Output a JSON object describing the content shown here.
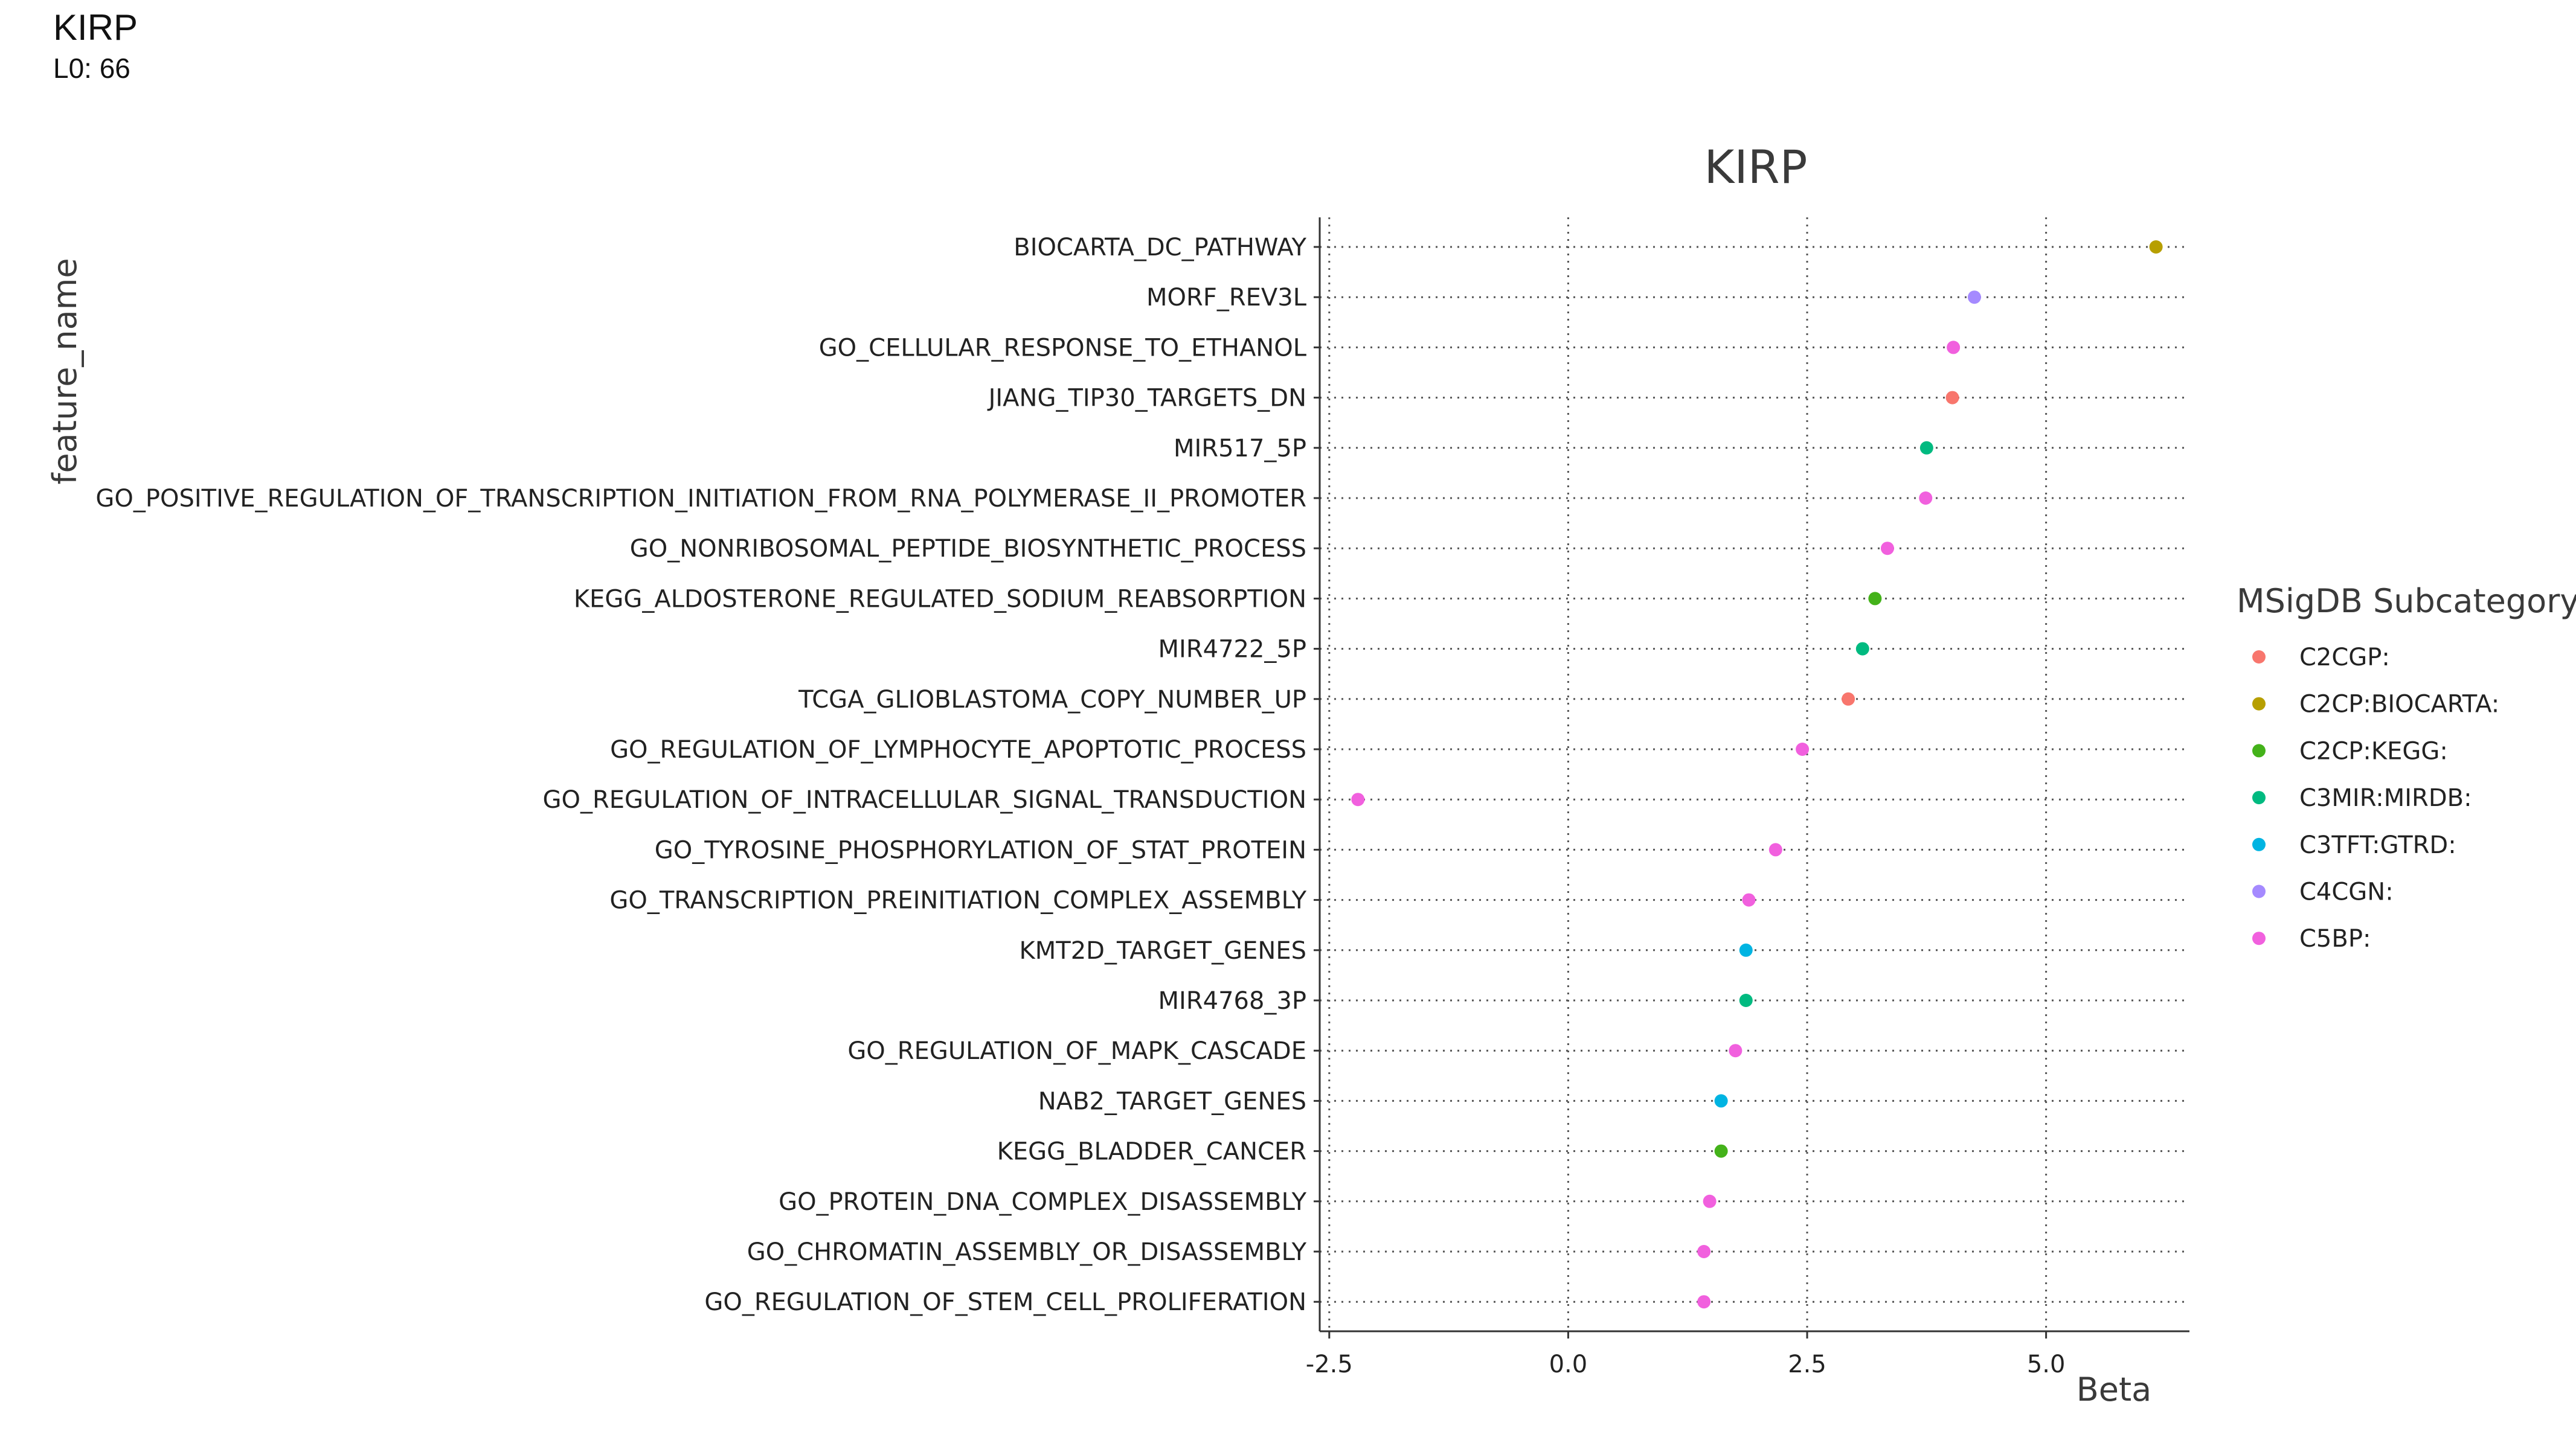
{
  "page": {
    "title": "KIRP",
    "subtitle": "L0: 66"
  },
  "chart_data": {
    "type": "scatter",
    "title": "KIRP",
    "xlabel": "Beta",
    "ylabel": "feature_name",
    "xlim": [
      -2.6,
      6.5
    ],
    "xticks": [
      -2.5,
      0.0,
      2.5,
      5.0
    ],
    "xtick_labels": [
      "-2.5",
      "0.0",
      "2.5",
      "5.0"
    ],
    "grid": "dotted",
    "legend": {
      "title": "MSigDB Subcategory",
      "position": "right",
      "entries": [
        {
          "label": "C2CGP:",
          "color": "#F8766D"
        },
        {
          "label": "C2CP:BIOCARTA:",
          "color": "#B79F00"
        },
        {
          "label": "C2CP:KEGG:",
          "color": "#44B21A"
        },
        {
          "label": "C3MIR:MIRDB:",
          "color": "#00BA80"
        },
        {
          "label": "C3TFT:GTRD:",
          "color": "#00B4E2"
        },
        {
          "label": "C4CGN:",
          "color": "#A58AFF"
        },
        {
          "label": "C5BP:",
          "color": "#F160DE"
        }
      ]
    },
    "points": [
      {
        "name": "BIOCARTA_DC_PATHWAY",
        "beta": 6.15,
        "category": "C2CP:BIOCARTA:"
      },
      {
        "name": "MORF_REV3L",
        "beta": 4.25,
        "category": "C4CGN:"
      },
      {
        "name": "GO_CELLULAR_RESPONSE_TO_ETHANOL",
        "beta": 4.03,
        "category": "C5BP:"
      },
      {
        "name": "JIANG_TIP30_TARGETS_DN",
        "beta": 4.02,
        "category": "C2CGP:"
      },
      {
        "name": "MIR517_5P",
        "beta": 3.75,
        "category": "C3MIR:MIRDB:"
      },
      {
        "name": "GO_POSITIVE_REGULATION_OF_TRANSCRIPTION_INITIATION_FROM_RNA_POLYMERASE_II_PROMOTER",
        "beta": 3.74,
        "category": "C5BP:"
      },
      {
        "name": "GO_NONRIBOSOMAL_PEPTIDE_BIOSYNTHETIC_PROCESS",
        "beta": 3.34,
        "category": "C5BP:"
      },
      {
        "name": "KEGG_ALDOSTERONE_REGULATED_SODIUM_REABSORPTION",
        "beta": 3.21,
        "category": "C2CP:KEGG:"
      },
      {
        "name": "MIR4722_5P",
        "beta": 3.08,
        "category": "C3MIR:MIRDB:"
      },
      {
        "name": "TCGA_GLIOBLASTOMA_COPY_NUMBER_UP",
        "beta": 2.93,
        "category": "C2CGP:"
      },
      {
        "name": "GO_REGULATION_OF_LYMPHOCYTE_APOPTOTIC_PROCESS",
        "beta": 2.45,
        "category": "C5BP:"
      },
      {
        "name": "GO_REGULATION_OF_INTRACELLULAR_SIGNAL_TRANSDUCTION",
        "beta": -2.2,
        "category": "C5BP:"
      },
      {
        "name": "GO_TYROSINE_PHOSPHORYLATION_OF_STAT_PROTEIN",
        "beta": 2.17,
        "category": "C5BP:"
      },
      {
        "name": "GO_TRANSCRIPTION_PREINITIATION_COMPLEX_ASSEMBLY",
        "beta": 1.89,
        "category": "C5BP:"
      },
      {
        "name": "KMT2D_TARGET_GENES",
        "beta": 1.86,
        "category": "C3TFT:GTRD:"
      },
      {
        "name": "MIR4768_3P",
        "beta": 1.86,
        "category": "C3MIR:MIRDB:"
      },
      {
        "name": "GO_REGULATION_OF_MAPK_CASCADE",
        "beta": 1.75,
        "category": "C5BP:"
      },
      {
        "name": "NAB2_TARGET_GENES",
        "beta": 1.6,
        "category": "C3TFT:GTRD:"
      },
      {
        "name": "KEGG_BLADDER_CANCER",
        "beta": 1.6,
        "category": "C2CP:KEGG:"
      },
      {
        "name": "GO_PROTEIN_DNA_COMPLEX_DISASSEMBLY",
        "beta": 1.48,
        "category": "C5BP:"
      },
      {
        "name": "GO_CHROMATIN_ASSEMBLY_OR_DISASSEMBLY",
        "beta": 1.42,
        "category": "C5BP:"
      },
      {
        "name": "GO_REGULATION_OF_STEM_CELL_PROLIFERATION",
        "beta": 1.42,
        "category": "C5BP:"
      }
    ]
  }
}
